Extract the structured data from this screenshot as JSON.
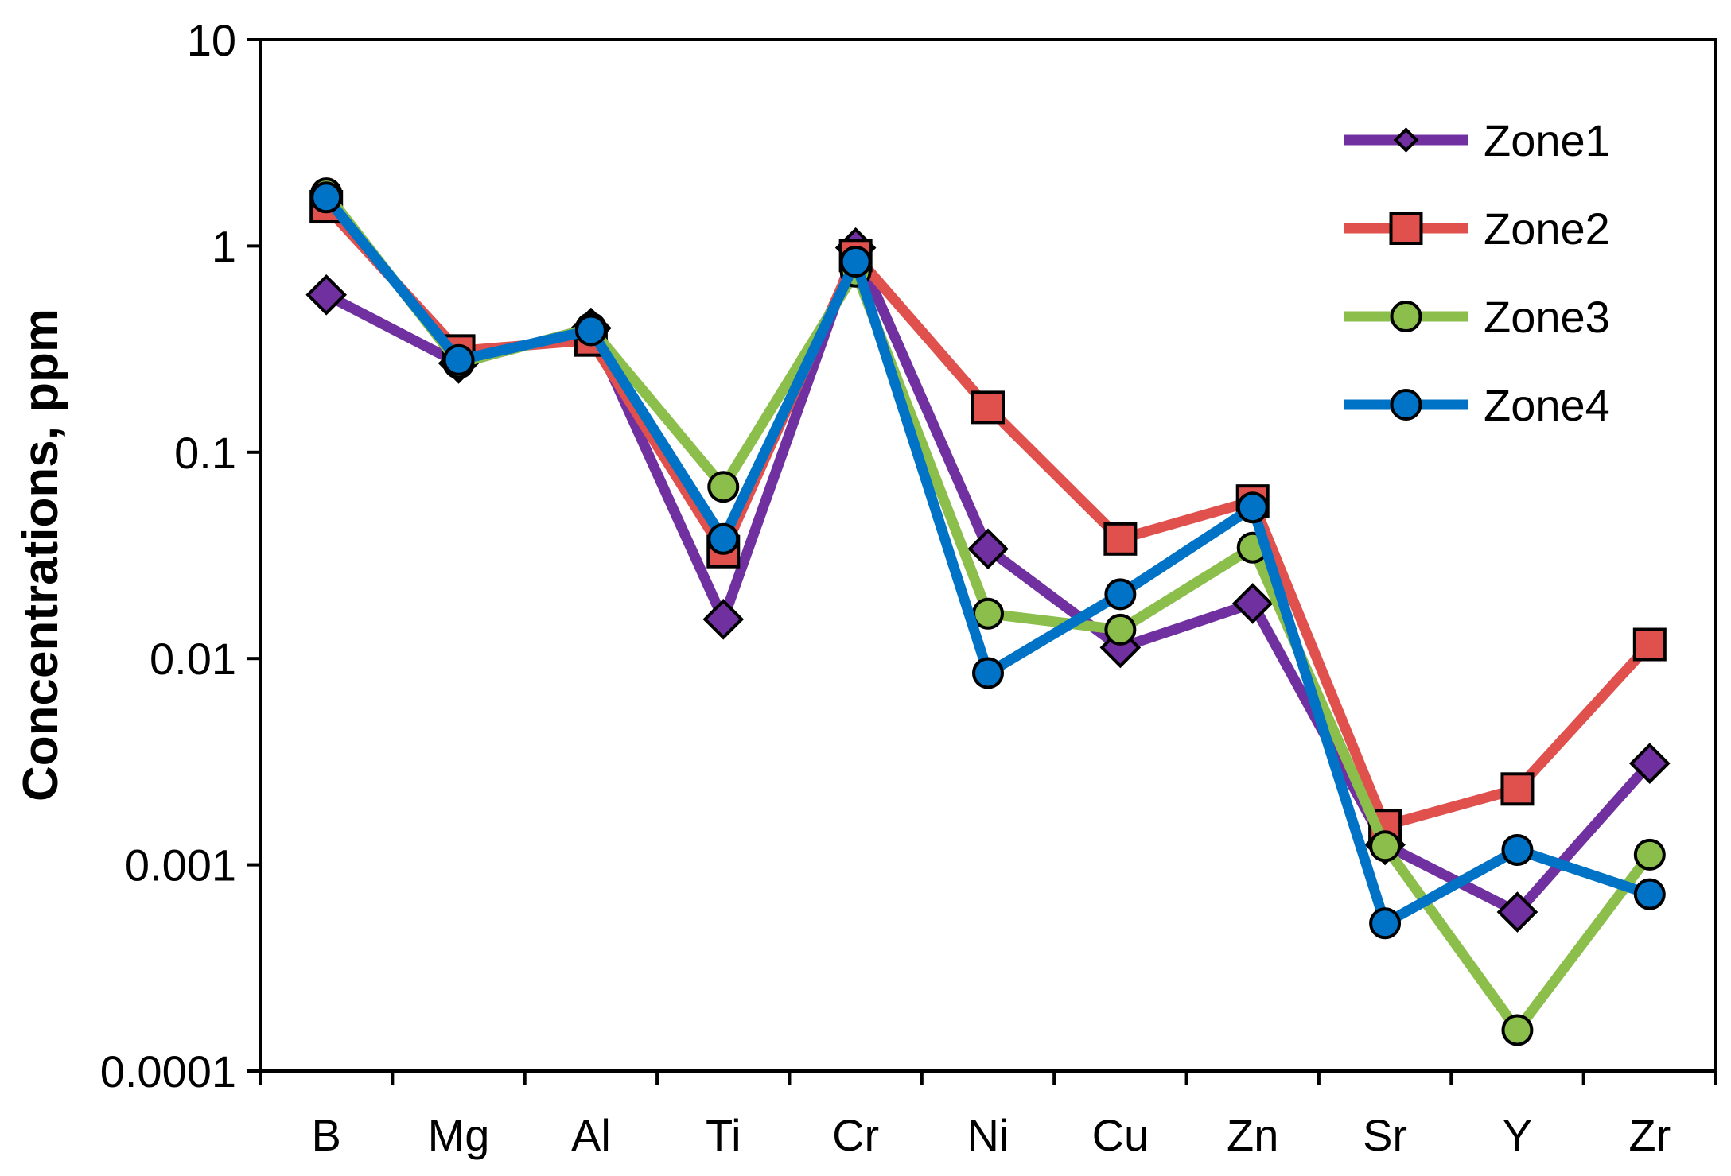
{
  "chart_data": {
    "type": "line",
    "title": "",
    "xlabel": "",
    "ylabel": "Concentrations, ppm",
    "y_scale": "log",
    "ylim": [
      0.0001,
      10
    ],
    "y_ticks": [
      {
        "value": 10,
        "label": "10"
      },
      {
        "value": 1,
        "label": "1"
      },
      {
        "value": 0.1,
        "label": "0.1"
      },
      {
        "value": 0.01,
        "label": "0.01"
      },
      {
        "value": 0.001,
        "label": "0.001"
      },
      {
        "value": 0.0001,
        "label": "0.0001"
      }
    ],
    "categories": [
      "B",
      "Mg",
      "Al",
      "Ti",
      "Cr",
      "Ni",
      "Cu",
      "Zn",
      "Sr",
      "Y",
      "Zr"
    ],
    "grid": false,
    "legend_position": "top-right",
    "series": [
      {
        "name": "Zone1",
        "color": "#7030a0",
        "marker": "diamond",
        "values": [
          0.58,
          0.27,
          0.4,
          0.0155,
          0.98,
          0.034,
          0.0113,
          0.0185,
          0.00125,
          0.00059,
          0.0031
        ]
      },
      {
        "name": "Zone2",
        "color": "#e0504d",
        "marker": "square",
        "values": [
          1.55,
          0.31,
          0.35,
          0.033,
          0.9,
          0.165,
          0.038,
          0.058,
          0.00155,
          0.00233,
          0.0117
        ]
      },
      {
        "name": "Zone3",
        "color": "#8cbe4b",
        "marker": "circle",
        "values": [
          1.8,
          0.27,
          0.4,
          0.068,
          0.75,
          0.0165,
          0.0138,
          0.0345,
          0.00123,
          0.000158,
          0.00112
        ]
      },
      {
        "name": "Zone4",
        "color": "#0073c6",
        "marker": "circle",
        "values": [
          1.72,
          0.28,
          0.39,
          0.038,
          0.84,
          0.0085,
          0.0205,
          0.054,
          0.00052,
          0.00118,
          0.00072
        ]
      }
    ]
  }
}
